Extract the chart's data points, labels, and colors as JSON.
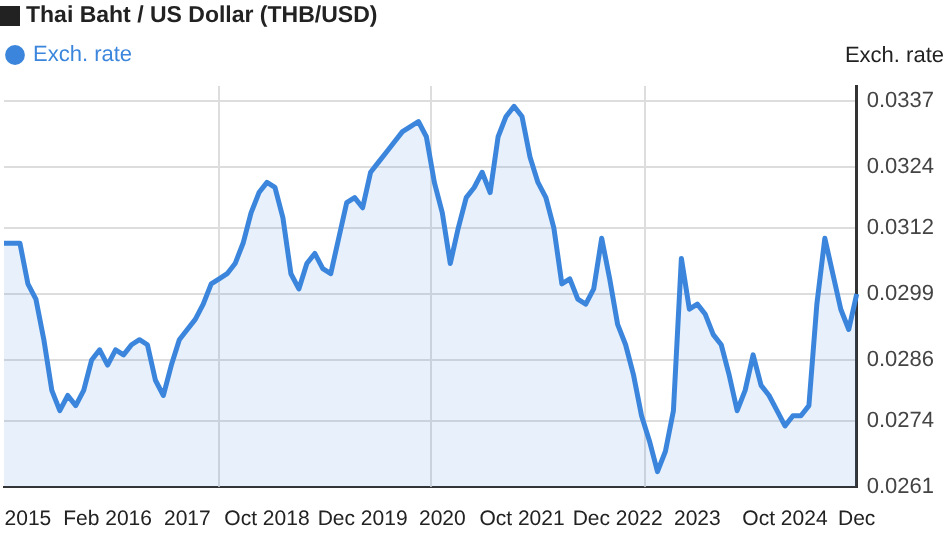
{
  "chart_data": {
    "type": "area",
    "title": "Thai Baht / US Dollar (THB/USD)",
    "ylabel": "Exch. rate",
    "categories": [
      null,
      null,
      null,
      "2015",
      null,
      null,
      null,
      null,
      null,
      null,
      null,
      null,
      null,
      "Feb 2016",
      null,
      null,
      null,
      null,
      null,
      null,
      null,
      null,
      null,
      "2017",
      null,
      null,
      null,
      null,
      null,
      null,
      null,
      null,
      null,
      "Oct 2018",
      null,
      null,
      null,
      null,
      null,
      null,
      null,
      null,
      null,
      null,
      null,
      "Dec 2019",
      null,
      null,
      null,
      null,
      null,
      null,
      null,
      null,
      null,
      "2020",
      null,
      null,
      null,
      null,
      null,
      null,
      null,
      null,
      null,
      "Oct 2021",
      null,
      null,
      null,
      null,
      null,
      null,
      null,
      null,
      null,
      null,
      null,
      "Dec 2022",
      null,
      null,
      null,
      null,
      null,
      null,
      null,
      null,
      null,
      "2023",
      null,
      null,
      null,
      null,
      null,
      null,
      null,
      null,
      null,
      null,
      "Oct 2024",
      null,
      null,
      null,
      null,
      null,
      null,
      null,
      null,
      "Dec"
    ],
    "series": [
      {
        "name": "Exch. rate",
        "color": "#3b86dc",
        "values": [
          0.0309,
          0.0309,
          0.0309,
          0.0301,
          0.0298,
          0.029,
          0.028,
          0.0276,
          0.0279,
          0.0277,
          0.028,
          0.0286,
          0.0288,
          0.0285,
          0.0288,
          0.0287,
          0.0289,
          0.029,
          0.0289,
          0.0282,
          0.0279,
          0.0285,
          0.029,
          0.0292,
          0.0294,
          0.0297,
          0.0301,
          0.0302,
          0.0303,
          0.0305,
          0.0309,
          0.0315,
          0.0319,
          0.0321,
          0.032,
          0.0314,
          0.0303,
          0.03,
          0.0305,
          0.0307,
          0.0304,
          0.0303,
          0.031,
          0.0317,
          0.0318,
          0.0316,
          0.0323,
          0.0325,
          0.0327,
          0.0329,
          0.0331,
          0.0332,
          0.0333,
          0.033,
          0.0321,
          0.0315,
          0.0305,
          0.0312,
          0.0318,
          0.032,
          0.0323,
          0.0319,
          0.033,
          0.0334,
          0.0336,
          0.0334,
          0.0326,
          0.0321,
          0.0318,
          0.0312,
          0.0301,
          0.0302,
          0.0298,
          0.0297,
          0.03,
          0.031,
          0.0302,
          0.0293,
          0.0289,
          0.0283,
          0.0275,
          0.027,
          0.0264,
          0.0268,
          0.0276,
          0.0306,
          0.0296,
          0.0297,
          0.0295,
          0.0291,
          0.0289,
          0.0283,
          0.0276,
          0.028,
          0.0287,
          0.0281,
          0.0279,
          0.0276,
          0.0273,
          0.0275,
          0.0275,
          0.0277,
          0.0297,
          0.031,
          0.0303,
          0.0296,
          0.0292,
          0.0299
        ]
      }
    ],
    "ylim": [
      0.0261,
      0.034
    ],
    "yticks": [
      0.0261,
      0.0274,
      0.0286,
      0.0299,
      0.0312,
      0.0324,
      0.0337
    ],
    "grid": true,
    "legend": "top left",
    "marker": "none",
    "line_style": "solid"
  }
}
